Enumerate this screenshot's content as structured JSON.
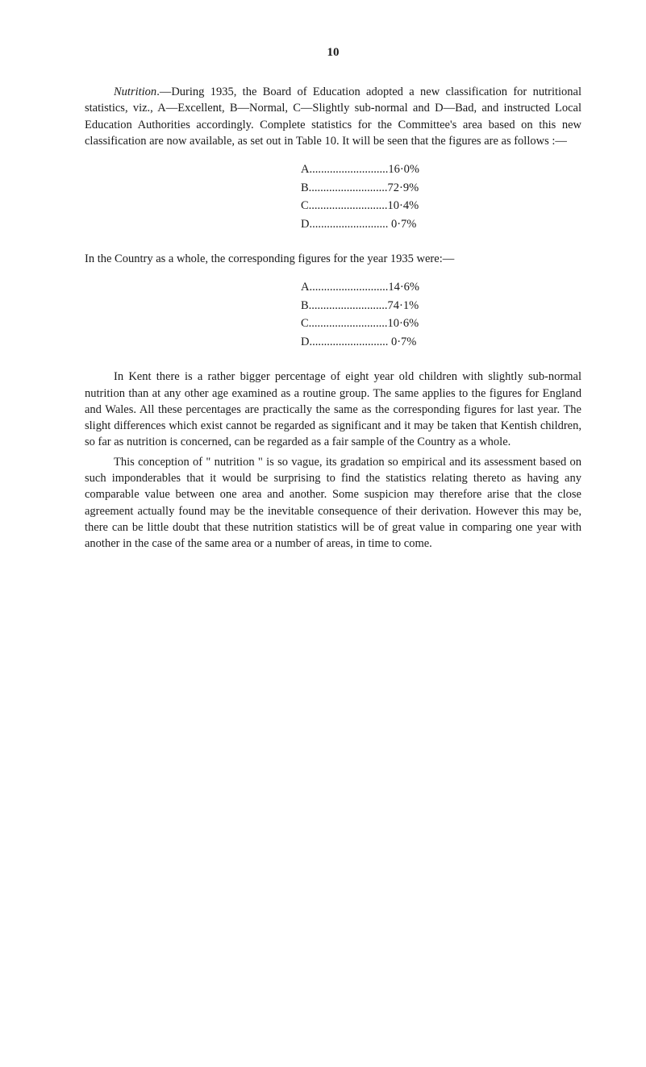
{
  "page_number": "10",
  "para1_lead_italic": "Nutrition",
  "para1_rest": ".—During 1935, the Board of Education adopted a new classification for nutritional statistics, viz., A—Excellent, B—Normal, C—Slightly sub-normal and D—Bad, and instructed Local Education Authorities accordingly. Complete statistics for the Committee's area based on this new classification are now available, as set out in Table 10. It will be seen that the figures are as follows :—",
  "stats1": {
    "A": "A...........................16·0%",
    "B": "B...........................72·9%",
    "C": "C...........................10·4%",
    "D": "D........................... 0·7%"
  },
  "para2": "In the Country as a whole, the corresponding figures for the year 1935 were:—",
  "stats2": {
    "A": "A...........................14·6%",
    "B": "B...........................74·1%",
    "C": "C...........................10·6%",
    "D": "D........................... 0·7%"
  },
  "para3": "In Kent there is a rather bigger percentage of eight year old children with slightly sub-normal nutrition than at any other age examined as a routine group. The same applies to the figures for England and Wales. All these percentages are practically the same as the corresponding figures for last year. The slight differences which exist cannot be regarded as significant and it may be taken that Kentish children, so far as nutrition is concerned, can be regarded as a fair sample of the Country as a whole.",
  "para4": "This conception of \" nutrition \" is so vague, its gradation so empirical and its assessment based on such imponderables that it would be surprising to find the statistics relating thereto as having any comparable value between one area and another. Some suspicion may therefore arise that the close agreement actually found may be the inevitable consequence of their derivation. However this may be, there can be little doubt that these nutrition statistics will be of great value in comparing one year with another in the case of the same area or a number of areas, in time to come."
}
